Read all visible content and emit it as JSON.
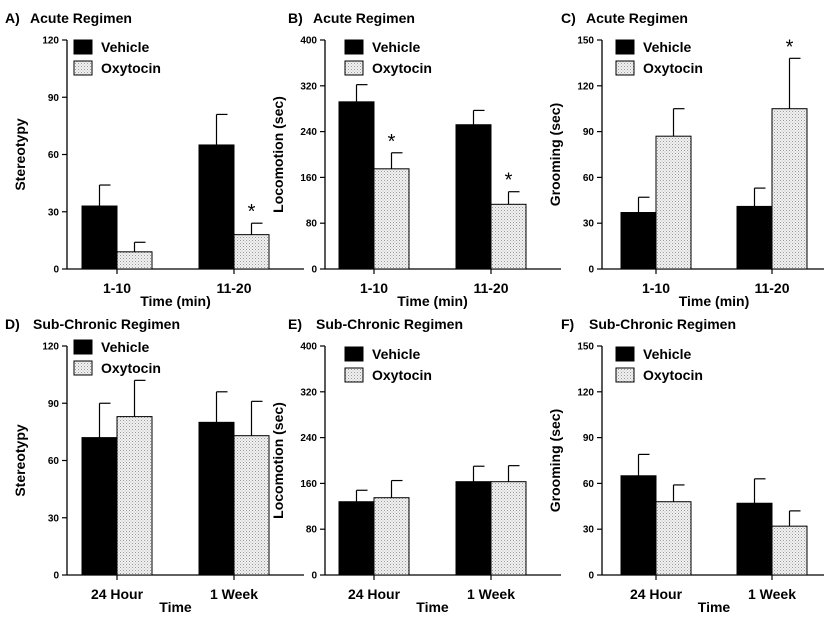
{
  "colors": {
    "vehicle": "#000000",
    "oxytocin": "#e2e2e2"
  },
  "chart_data": [
    {
      "type": "bar",
      "panel": "A)",
      "title": "Acute Regimen",
      "xlabel": "Time (min)",
      "ylabel": "Stereotypy",
      "ylim": [
        0,
        120
      ],
      "yticks": [
        0,
        30,
        60,
        90,
        120
      ],
      "categories": [
        "1-10",
        "11-20"
      ],
      "legend": [
        "Vehicle",
        "Oxytocin"
      ],
      "series": [
        {
          "name": "Vehicle",
          "values": [
            33,
            65
          ],
          "errors": [
            11,
            16
          ]
        },
        {
          "name": "Oxytocin",
          "values": [
            9,
            18
          ],
          "errors": [
            5,
            6
          ]
        }
      ],
      "significance": [
        {
          "series": "Oxytocin",
          "category": "11-20",
          "label": "*"
        }
      ]
    },
    {
      "type": "bar",
      "panel": "B)",
      "title": "Acute Regimen",
      "xlabel": "Time (min)",
      "ylabel": "Locomotion (sec)",
      "ylim": [
        0,
        400
      ],
      "yticks": [
        0,
        80,
        160,
        240,
        320,
        400
      ],
      "categories": [
        "1-10",
        "11-20"
      ],
      "legend": [
        "Vehicle",
        "Oxytocin"
      ],
      "series": [
        {
          "name": "Vehicle",
          "values": [
            292,
            252
          ],
          "errors": [
            30,
            25
          ]
        },
        {
          "name": "Oxytocin",
          "values": [
            175,
            113
          ],
          "errors": [
            28,
            22
          ]
        }
      ],
      "significance": [
        {
          "series": "Oxytocin",
          "category": "1-10",
          "label": "*"
        },
        {
          "series": "Oxytocin",
          "category": "11-20",
          "label": "*"
        }
      ]
    },
    {
      "type": "bar",
      "panel": "C)",
      "title": "Acute Regimen",
      "xlabel": "Time (min)",
      "ylabel": "Grooming (sec)",
      "ylim": [
        0,
        150
      ],
      "yticks": [
        0,
        30,
        60,
        90,
        120,
        150
      ],
      "categories": [
        "1-10",
        "11-20"
      ],
      "legend": [
        "Vehicle",
        "Oxytocin"
      ],
      "series": [
        {
          "name": "Vehicle",
          "values": [
            37,
            41
          ],
          "errors": [
            10,
            12
          ]
        },
        {
          "name": "Oxytocin",
          "values": [
            87,
            105
          ],
          "errors": [
            18,
            33
          ]
        }
      ],
      "significance": [
        {
          "series": "Oxytocin",
          "category": "11-20",
          "label": "*"
        }
      ]
    },
    {
      "type": "bar",
      "panel": "D)",
      "title": "Sub-Chronic Regimen",
      "xlabel": "Time",
      "ylabel": "Stereotypy",
      "ylim": [
        0,
        120
      ],
      "yticks": [
        0,
        30,
        60,
        90,
        120
      ],
      "categories": [
        "24 Hour",
        "1 Week"
      ],
      "legend": [
        "Vehicle",
        "Oxytocin"
      ],
      "series": [
        {
          "name": "Vehicle",
          "values": [
            72,
            80
          ],
          "errors": [
            18,
            16
          ]
        },
        {
          "name": "Oxytocin",
          "values": [
            83,
            73
          ],
          "errors": [
            19,
            18
          ]
        }
      ],
      "significance": []
    },
    {
      "type": "bar",
      "panel": "E)",
      "title": "Sub-Chronic Regimen",
      "xlabel": "Time",
      "ylabel": "Locomotion (sec)",
      "ylim": [
        0,
        400
      ],
      "yticks": [
        0,
        80,
        160,
        240,
        320,
        400
      ],
      "categories": [
        "24 Hour",
        "1 Week"
      ],
      "legend": [
        "Vehicle",
        "Oxytocin"
      ],
      "series": [
        {
          "name": "Vehicle",
          "values": [
            128,
            163
          ],
          "errors": [
            20,
            27
          ]
        },
        {
          "name": "Oxytocin",
          "values": [
            135,
            163
          ],
          "errors": [
            30,
            28
          ]
        }
      ],
      "significance": []
    },
    {
      "type": "bar",
      "panel": "F)",
      "title": "Sub-Chronic Regimen",
      "xlabel": "Time",
      "ylabel": "Grooming (sec)",
      "ylim": [
        0,
        150
      ],
      "yticks": [
        0,
        30,
        60,
        90,
        120,
        150
      ],
      "categories": [
        "24 Hour",
        "1 Week"
      ],
      "legend": [
        "Vehicle",
        "Oxytocin"
      ],
      "series": [
        {
          "name": "Vehicle",
          "values": [
            65,
            47
          ],
          "errors": [
            14,
            16
          ]
        },
        {
          "name": "Oxytocin",
          "values": [
            48,
            32
          ],
          "errors": [
            11,
            10
          ]
        }
      ],
      "significance": []
    }
  ]
}
